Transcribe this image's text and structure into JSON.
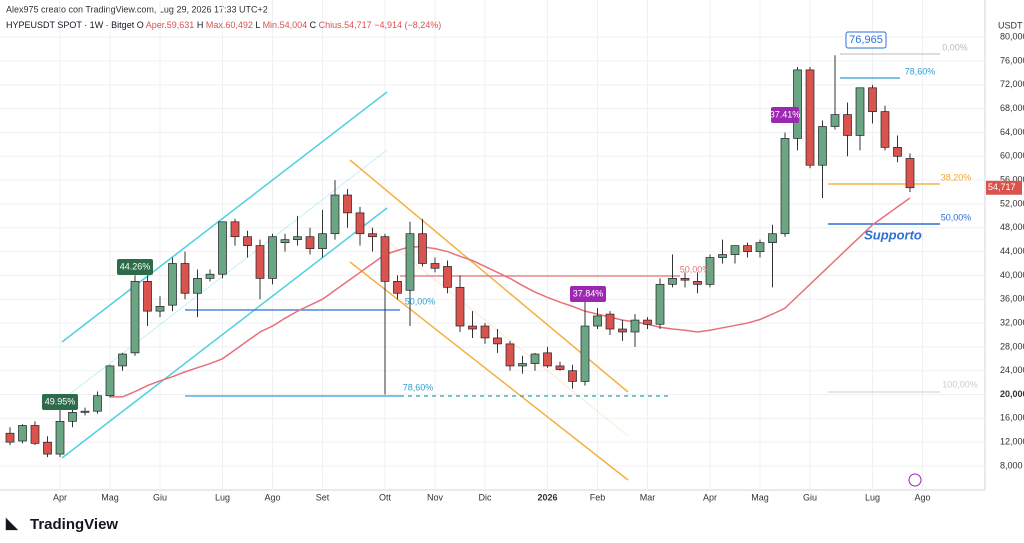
{
  "chart_data": {
    "type": "candlestick",
    "credit": "Alex975 creato con TradingView.com, Lug 29, 2026 17:33 UTC+2",
    "symbol": "HYPEUSDT SPOT · 1W · Bitget",
    "ohlc_header": [
      {
        "key": "O",
        "text": "Aper.59,631"
      },
      {
        "key": "H",
        "text": "Max.60,492"
      },
      {
        "key": "L",
        "text": "Min.54,004"
      },
      {
        "key": "C",
        "text": "Chius.54,717"
      }
    ],
    "change_text": "−4,914 (−8,24%)",
    "axis_unit": "USDT",
    "brand": "TradingView",
    "last_price_label": "54,717",
    "up_color": "#6aa584",
    "down_color": "#d9534f",
    "ma_color": "#e8707a",
    "open": [
      13500,
      12200,
      14800,
      12000,
      10000,
      15500,
      17000,
      17200,
      19800,
      24800,
      27000,
      39000,
      34000,
      35000,
      42000,
      37000,
      39500,
      40200,
      49000,
      46500,
      45000,
      39500,
      45500,
      46000,
      46500,
      44500,
      47000,
      53500,
      50500,
      47000,
      46500,
      39000,
      37500,
      47000,
      42000,
      41500,
      38000,
      31500,
      31500,
      29500,
      28500,
      24800,
      25200,
      27000,
      24800,
      24000,
      22200,
      31500,
      33500,
      31000,
      30500,
      32500,
      31800,
      38500,
      39500,
      39000,
      38500,
      43000,
      43500,
      45000,
      44000,
      45500,
      47000,
      63000,
      74500,
      58500,
      65000,
      67000,
      63500,
      71500,
      67500,
      61500,
      59631
    ],
    "high": [
      14500,
      15000,
      15500,
      13000,
      18500,
      17500,
      17800,
      20500,
      25000,
      27000,
      40000,
      40000,
      36500,
      43000,
      44000,
      41000,
      41000,
      49000,
      49500,
      47500,
      46000,
      47000,
      47000,
      50000,
      48000,
      51000,
      56000,
      54500,
      51500,
      48000,
      47000,
      40000,
      49000,
      49500,
      43000,
      42500,
      40000,
      34000,
      32000,
      31000,
      29000,
      26500,
      27000,
      28000,
      25500,
      25000,
      36000,
      34500,
      34000,
      32500,
      33500,
      33000,
      39500,
      43500,
      40500,
      40500,
      43500,
      46000,
      45000,
      45500,
      46000,
      48500,
      64000,
      75000,
      75000,
      66000,
      76965,
      69000,
      71500,
      72000,
      68500,
      63500,
      60492
    ],
    "low": [
      11500,
      11800,
      11500,
      9500,
      9500,
      14500,
      16500,
      16800,
      19500,
      24000,
      26500,
      31500,
      33000,
      34000,
      36000,
      33000,
      39000,
      39500,
      45000,
      43000,
      36000,
      38500,
      44000,
      45000,
      43500,
      43000,
      46000,
      48000,
      45000,
      44000,
      20000,
      36000,
      31500,
      41500,
      40500,
      37000,
      30500,
      29500,
      28500,
      27000,
      24000,
      23500,
      24000,
      24500,
      24000,
      21000,
      21500,
      31000,
      30000,
      29000,
      28000,
      31000,
      31000,
      38000,
      38000,
      37000,
      38000,
      42000,
      42000,
      43000,
      43000,
      38000,
      46500,
      61000,
      58000,
      53000,
      64500,
      60000,
      61000,
      65500,
      61000,
      59000,
      54004
    ],
    "close": [
      12000,
      14800,
      11800,
      10000,
      15500,
      17000,
      17200,
      19800,
      24800,
      26800,
      39000,
      34000,
      34800,
      42000,
      37000,
      39500,
      40200,
      49000,
      46500,
      45000,
      39500,
      46500,
      46000,
      46500,
      44500,
      47000,
      53500,
      50500,
      47000,
      46500,
      39000,
      37000,
      47000,
      42000,
      41200,
      38000,
      31500,
      31000,
      29500,
      28500,
      24800,
      25200,
      26800,
      24800,
      24200,
      22200,
      31500,
      33200,
      31000,
      30500,
      32500,
      31800,
      38500,
      39500,
      39200,
      38500,
      43000,
      43500,
      45000,
      44000,
      45500,
      47000,
      63000,
      74500,
      58500,
      65000,
      67000,
      63500,
      71500,
      67500,
      61500,
      60000,
      54717
    ],
    "ma": [
      null,
      null,
      null,
      null,
      null,
      null,
      null,
      null,
      19600,
      19600,
      20500,
      21500,
      22300,
      23000,
      23800,
      24500,
      25200,
      26000,
      27500,
      29000,
      30500,
      31500,
      32800,
      34000,
      35000,
      36000,
      37500,
      39000,
      40500,
      42000,
      43500,
      44200,
      44800,
      44800,
      44500,
      44000,
      43200,
      42500,
      41500,
      40500,
      39500,
      38300,
      37200,
      36300,
      35500,
      34800,
      34000,
      33500,
      33000,
      32500,
      32200,
      31800,
      31300,
      31000,
      30800,
      30500,
      30800,
      31200,
      31600,
      32000,
      32600,
      33500,
      34500,
      36500,
      38500,
      40500,
      42500,
      44500,
      46500,
      48500,
      50000,
      51500,
      53000
    ],
    "xticks": [
      {
        "value": 4,
        "label": "Apr"
      },
      {
        "value": 8,
        "label": "Mag"
      },
      {
        "value": 12,
        "label": "Giu"
      },
      {
        "value": 17,
        "label": "Lug"
      },
      {
        "value": 21,
        "label": "Ago"
      },
      {
        "value": 25,
        "label": "Set"
      },
      {
        "value": 30,
        "label": "Ott"
      },
      {
        "value": 34,
        "label": "Nov"
      },
      {
        "value": 38,
        "label": "Dic"
      },
      {
        "value": 43,
        "label": "2026"
      },
      {
        "value": 47,
        "label": "Feb"
      },
      {
        "value": 51,
        "label": "Mar"
      },
      {
        "value": 56,
        "label": "Apr"
      },
      {
        "value": 60,
        "label": "Mag"
      },
      {
        "value": 64,
        "label": "Giu"
      },
      {
        "value": 69,
        "label": "Lug"
      },
      {
        "value": 73,
        "label": "Ago"
      }
    ],
    "ylim": [
      3970,
      86240
    ],
    "yticks": [
      {
        "value": 8000,
        "label": "8,000"
      },
      {
        "value": 12000,
        "label": "12,000"
      },
      {
        "value": 16000,
        "label": "16,000"
      },
      {
        "value": 20000,
        "label": "20,000"
      },
      {
        "value": 24000,
        "label": "24,000"
      },
      {
        "value": 28000,
        "label": "28,000"
      },
      {
        "value": 32000,
        "label": "32,000"
      },
      {
        "value": 36000,
        "label": "36,000"
      },
      {
        "value": 40000,
        "label": "40,000"
      },
      {
        "value": 44000,
        "label": "44,000"
      },
      {
        "value": 48000,
        "label": "48,000"
      },
      {
        "value": 52000,
        "label": "52,000"
      },
      {
        "value": 56000,
        "label": "56,000"
      },
      {
        "value": 60000,
        "label": "60,000"
      },
      {
        "value": 64000,
        "label": "64,000"
      },
      {
        "value": 68000,
        "label": "68,000"
      },
      {
        "value": 72000,
        "label": "72,000"
      },
      {
        "value": 76000,
        "label": "76,000"
      },
      {
        "value": 80000,
        "label": "80,000"
      }
    ],
    "grid": true,
    "annotations": [
      "49.95%",
      "44.26%",
      "37.84%",
      "37.41%",
      "76,965",
      "Supporto",
      "0,00%",
      "78,60%",
      "38,20%",
      "50,00%",
      "100,00%",
      "50,00%",
      "50,00%",
      "78,60%"
    ]
  }
}
